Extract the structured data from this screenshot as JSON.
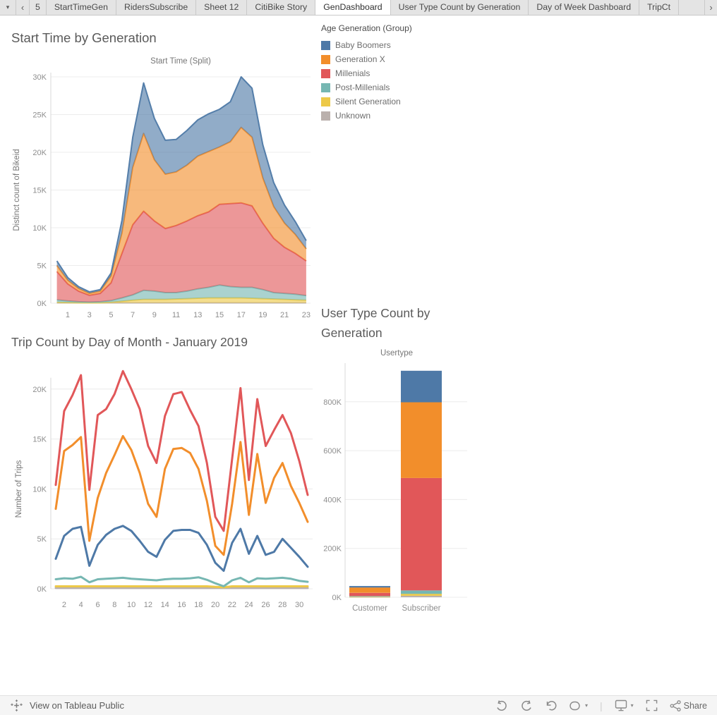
{
  "tabbar": {
    "dropdown_icon": "▾",
    "prev_icon": "‹",
    "next_icon": "›",
    "tabs": [
      {
        "label": "5",
        "active": false,
        "cut": true
      },
      {
        "label": "StartTimeGen",
        "active": false
      },
      {
        "label": "RidersSubscribe",
        "active": false
      },
      {
        "label": "Sheet 12",
        "active": false
      },
      {
        "label": "CitiBike Story",
        "active": false
      },
      {
        "label": "GenDashboard",
        "active": true
      },
      {
        "label": "User Type Count by Generation",
        "active": false
      },
      {
        "label": "Day of Week Dashboard",
        "active": false
      },
      {
        "label": "TripCt",
        "active": false,
        "truncated": true
      }
    ]
  },
  "legend": {
    "title": "Age Generation (Group)",
    "items": [
      {
        "label": "Baby Boomers",
        "color": "#4e79a7"
      },
      {
        "label": "Generation X",
        "color": "#f28e2b"
      },
      {
        "label": "Millenials",
        "color": "#e15759"
      },
      {
        "label": "Post-Millenials",
        "color": "#76b7b2"
      },
      {
        "label": "Silent Generation",
        "color": "#edc948"
      },
      {
        "label": "Unknown",
        "color": "#bab0ac"
      }
    ]
  },
  "chart_data": [
    {
      "id": "start-time-area",
      "type": "area",
      "stacked": true,
      "title": "Start Time by Generation",
      "subtitle": "Start Time (Split)",
      "ylabel": "Distinct count of Bikeid",
      "unit": "thousands",
      "x_hours": [
        0,
        1,
        2,
        3,
        4,
        5,
        6,
        7,
        8,
        9,
        10,
        11,
        12,
        13,
        14,
        15,
        16,
        17,
        18,
        19,
        20,
        21,
        22,
        23
      ],
      "xticks": [
        1,
        3,
        5,
        7,
        9,
        11,
        13,
        15,
        17,
        19,
        21,
        23
      ],
      "yticks": [
        0,
        5,
        10,
        15,
        20,
        25,
        30
      ],
      "ytick_labels": [
        "0K",
        "5K",
        "10K",
        "15K",
        "20K",
        "25K",
        "30K"
      ],
      "ylim": [
        0,
        30
      ],
      "series_bottom_to_top": [
        {
          "name": "Unknown",
          "color": "#bab0ac",
          "values": [
            0.05,
            0.05,
            0.05,
            0.05,
            0.05,
            0.05,
            0.05,
            0.05,
            0.05,
            0.05,
            0.05,
            0.05,
            0.05,
            0.05,
            0.05,
            0.05,
            0.05,
            0.05,
            0.05,
            0.05,
            0.05,
            0.05,
            0.05,
            0.05
          ]
        },
        {
          "name": "Silent Generation",
          "color": "#edc948",
          "values": [
            0.07,
            0.03,
            0.01,
            0.0,
            0.01,
            0.07,
            0.2,
            0.35,
            0.45,
            0.45,
            0.45,
            0.5,
            0.55,
            0.6,
            0.65,
            0.65,
            0.65,
            0.65,
            0.6,
            0.55,
            0.5,
            0.45,
            0.4,
            0.35
          ]
        },
        {
          "name": "Post-Millenials",
          "color": "#76b7b2",
          "values": [
            0.33,
            0.22,
            0.14,
            0.1,
            0.14,
            0.23,
            0.45,
            0.7,
            1.2,
            1.1,
            0.9,
            0.85,
            1.0,
            1.25,
            1.4,
            1.7,
            1.5,
            1.4,
            1.45,
            1.2,
            0.85,
            0.8,
            0.75,
            0.6
          ]
        },
        {
          "name": "Millenials",
          "color": "#e15759",
          "values": [
            3.75,
            2.25,
            1.4,
            0.9,
            1.1,
            2.35,
            5.9,
            9.3,
            10.5,
            9.3,
            8.5,
            8.9,
            9.3,
            9.7,
            10.0,
            10.7,
            11.0,
            11.2,
            10.8,
            8.8,
            7.2,
            6.1,
            5.4,
            4.6
          ]
        },
        {
          "name": "Generation X",
          "color": "#f28e2b",
          "values": [
            0.8,
            0.5,
            0.35,
            0.25,
            0.3,
            0.9,
            2.7,
            7.6,
            10.3,
            8.1,
            7.2,
            7.1,
            7.4,
            7.9,
            8.0,
            7.6,
            8.2,
            10.0,
            9.1,
            6.0,
            4.2,
            3.2,
            2.5,
            1.6
          ]
        },
        {
          "name": "Baby Boomers",
          "color": "#4e79a7",
          "values": [
            0.6,
            0.35,
            0.25,
            0.2,
            0.2,
            0.4,
            1.7,
            4.0,
            6.7,
            5.5,
            4.5,
            4.3,
            4.6,
            4.8,
            5.0,
            5.0,
            5.3,
            6.7,
            6.5,
            4.4,
            3.2,
            2.4,
            1.7,
            1.1
          ]
        }
      ]
    },
    {
      "id": "trip-count-line",
      "type": "line",
      "title": "Trip Count by Day of Month - January 2019",
      "ylabel": "Number of Trips",
      "unit": "thousands",
      "x_days": [
        1,
        2,
        3,
        4,
        5,
        6,
        7,
        8,
        9,
        10,
        11,
        12,
        13,
        14,
        15,
        16,
        17,
        18,
        19,
        20,
        21,
        22,
        23,
        24,
        25,
        26,
        27,
        28,
        29,
        30,
        31
      ],
      "xticks": [
        2,
        4,
        6,
        8,
        10,
        12,
        14,
        16,
        18,
        20,
        22,
        24,
        26,
        28,
        30
      ],
      "yticks": [
        0,
        5,
        10,
        15,
        20
      ],
      "ytick_labels": [
        "0K",
        "5K",
        "10K",
        "15K",
        "20K"
      ],
      "ylim": [
        0,
        22
      ],
      "series_draw_order": [
        {
          "name": "Unknown",
          "color": "#bab0ac",
          "values": [
            0.08,
            0.08,
            0.08,
            0.08,
            0.08,
            0.08,
            0.08,
            0.08,
            0.08,
            0.08,
            0.08,
            0.08,
            0.08,
            0.08,
            0.08,
            0.08,
            0.08,
            0.08,
            0.08,
            0.08,
            0.08,
            0.08,
            0.08,
            0.08,
            0.08,
            0.08,
            0.08,
            0.08,
            0.08,
            0.08,
            0.08
          ]
        },
        {
          "name": "Silent Generation",
          "color": "#edc948",
          "values": [
            0.25,
            0.25,
            0.25,
            0.25,
            0.25,
            0.25,
            0.25,
            0.25,
            0.25,
            0.25,
            0.25,
            0.25,
            0.25,
            0.25,
            0.25,
            0.25,
            0.25,
            0.25,
            0.25,
            0.2,
            0.15,
            0.25,
            0.25,
            0.25,
            0.25,
            0.25,
            0.25,
            0.25,
            0.25,
            0.25,
            0.25
          ]
        },
        {
          "name": "Post-Millenials",
          "color": "#76b7b2",
          "values": [
            0.95,
            1.05,
            1.0,
            1.2,
            0.65,
            0.95,
            1.0,
            1.05,
            1.1,
            1.0,
            0.95,
            0.9,
            0.85,
            0.95,
            1.0,
            1.0,
            1.05,
            1.15,
            0.9,
            0.55,
            0.25,
            0.85,
            1.1,
            0.65,
            1.05,
            1.0,
            1.05,
            1.1,
            1.0,
            0.8,
            0.7
          ]
        },
        {
          "name": "Baby Boomers",
          "color": "#4e79a7",
          "values": [
            3.0,
            5.3,
            6.0,
            6.2,
            2.3,
            4.4,
            5.4,
            6.0,
            6.3,
            5.8,
            4.8,
            3.7,
            3.2,
            4.9,
            5.8,
            5.9,
            5.9,
            5.6,
            4.4,
            2.6,
            1.8,
            4.6,
            6.0,
            3.5,
            5.3,
            3.4,
            3.7,
            5.0,
            4.1,
            3.2,
            2.2
          ]
        },
        {
          "name": "Generation X",
          "color": "#f28e2b",
          "values": [
            8.0,
            13.8,
            14.4,
            15.2,
            4.8,
            9.1,
            11.6,
            13.4,
            15.3,
            13.9,
            11.6,
            8.5,
            7.2,
            12.0,
            14.0,
            14.1,
            13.6,
            12.0,
            8.8,
            4.3,
            3.4,
            8.5,
            14.7,
            7.4,
            13.5,
            8.6,
            11.1,
            12.6,
            10.3,
            8.6,
            6.7
          ]
        },
        {
          "name": "Millenials",
          "color": "#e15759",
          "values": [
            10.4,
            17.8,
            19.4,
            21.4,
            9.9,
            17.4,
            18.0,
            19.5,
            21.8,
            20.0,
            18.0,
            14.3,
            12.6,
            17.3,
            19.5,
            19.7,
            17.9,
            16.3,
            12.6,
            7.2,
            5.8,
            13.0,
            20.1,
            10.9,
            19.0,
            14.3,
            15.9,
            17.4,
            15.6,
            12.8,
            9.4
          ]
        }
      ]
    },
    {
      "id": "user-type-bar",
      "type": "bar",
      "stacked": true,
      "title": "User Type Count by Generation",
      "subtitle": "Usertype",
      "unit": "thousands",
      "categories": [
        "Customer",
        "Subscriber"
      ],
      "yticks": [
        0,
        200,
        400,
        600,
        800
      ],
      "ytick_labels": [
        "0K",
        "200K",
        "400K",
        "600K",
        "800K"
      ],
      "ylim": [
        0,
        950
      ],
      "series_bottom_to_top": [
        {
          "name": "Unknown",
          "color": "#bab0ac",
          "values": [
            1,
            6
          ]
        },
        {
          "name": "Silent Generation",
          "color": "#edc948",
          "values": [
            1,
            8
          ]
        },
        {
          "name": "Post-Millenials",
          "color": "#76b7b2",
          "values": [
            3,
            14
          ]
        },
        {
          "name": "Millenials",
          "color": "#e15759",
          "values": [
            13,
            460
          ]
        },
        {
          "name": "Generation X",
          "color": "#f28e2b",
          "values": [
            22,
            310
          ]
        },
        {
          "name": "Baby Boomers",
          "color": "#4e79a7",
          "values": [
            6,
            129
          ]
        }
      ]
    }
  ],
  "toolbar": {
    "view_label": "View on Tableau Public",
    "share_label": "Share"
  }
}
